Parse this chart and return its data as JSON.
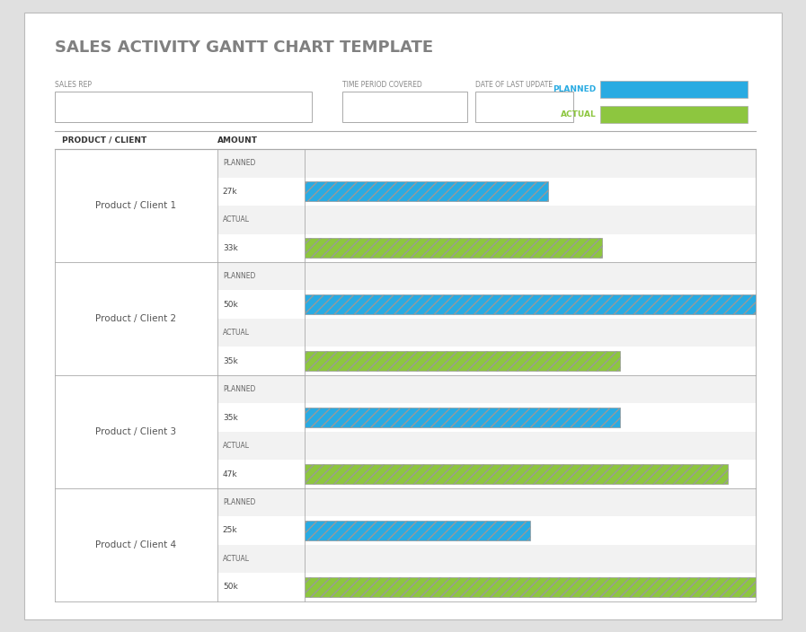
{
  "title": "SALES ACTIVITY GANTT CHART TEMPLATE",
  "title_color": "#808080",
  "background_color": "#e0e0e0",
  "chart_bg": "#ffffff",
  "header_labels": [
    "SALES REP",
    "TIME PERIOD COVERED",
    "DATE OF LAST UPDATE"
  ],
  "legend_planned_label": "PLANNED",
  "legend_actual_label": "ACTUAL",
  "legend_planned_color": "#29abe2",
  "legend_actual_color": "#8dc63f",
  "col_headers": [
    "PRODUCT / CLIENT",
    "AMOUNT"
  ],
  "products": [
    "Product / Client 1",
    "Product / Client 2",
    "Product / Client 3",
    "Product / Client 4"
  ],
  "planned_values": [
    27,
    50,
    35,
    25
  ],
  "actual_values": [
    33,
    35,
    47,
    50
  ],
  "max_value": 50,
  "planned_color": "#29abe2",
  "actual_color": "#8dc63f",
  "hatch_pattern": "///",
  "title_fontsize": 13
}
